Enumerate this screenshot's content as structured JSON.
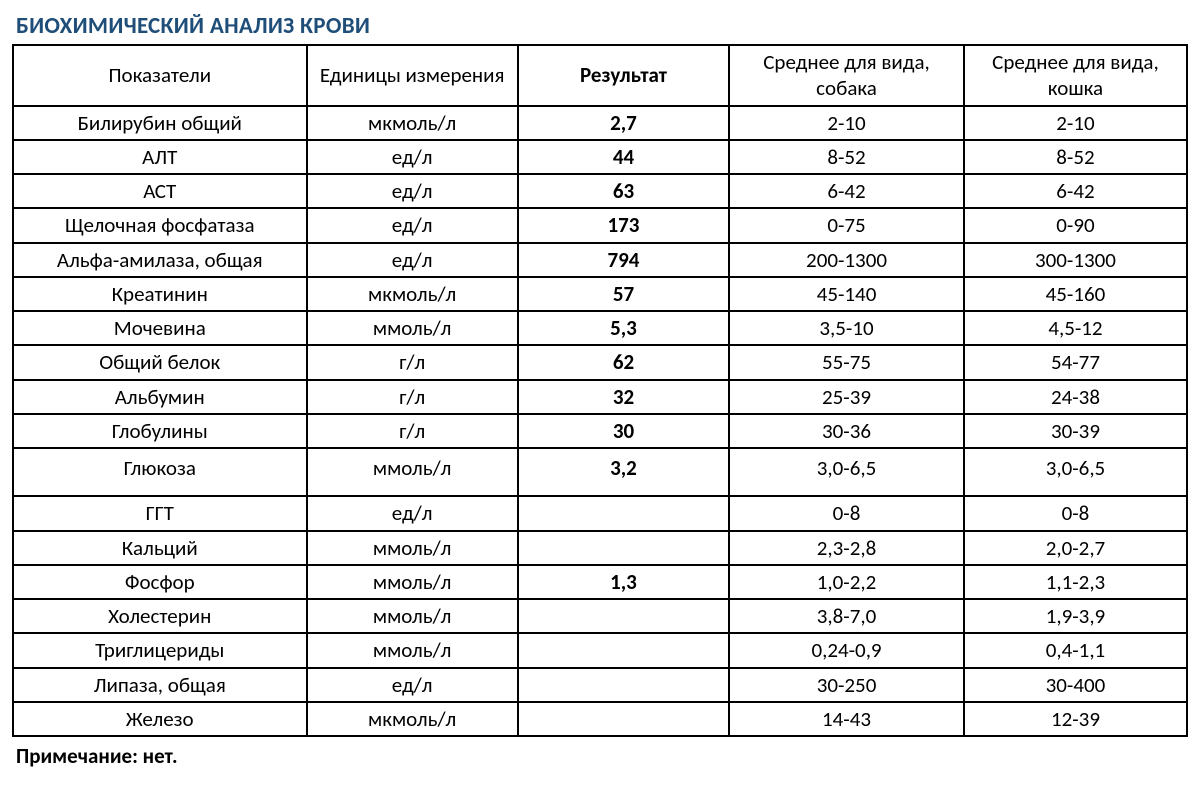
{
  "title": "БИОХИМИЧЕСКИЙ АНАЛИЗ КРОВИ",
  "columns": {
    "c1": "Показатели",
    "c2": "Единицы измерения",
    "c3": "Результат",
    "c4": "Среднее для вида, собака",
    "c5": "Среднее для вида, кошка"
  },
  "rows": [
    {
      "name": "Билирубин общий",
      "unit": "мкмоль/л",
      "result": "2,7",
      "dog": "2-10",
      "cat": "2-10"
    },
    {
      "name": "АЛТ",
      "unit": "ед/л",
      "result": "44",
      "dog": "8-52",
      "cat": "8-52"
    },
    {
      "name": "АСТ",
      "unit": "ед/л",
      "result": "63",
      "dog": "6-42",
      "cat": "6-42"
    },
    {
      "name": "Щелочная фосфатаза",
      "unit": "ед/л",
      "result": "173",
      "dog": "0-75",
      "cat": "0-90"
    },
    {
      "name": "Альфа-амилаза, общая",
      "unit": "ед/л",
      "result": "794",
      "dog": "200-1300",
      "cat": "300-1300"
    },
    {
      "name": "Креатинин",
      "unit": "мкмоль/л",
      "result": "57",
      "dog": "45-140",
      "cat": "45-160"
    },
    {
      "name": "Мочевина",
      "unit": "ммоль/л",
      "result": "5,3",
      "dog": "3,5-10",
      "cat": "4,5-12"
    },
    {
      "name": "Общий белок",
      "unit": "г/л",
      "result": "62",
      "dog": "55-75",
      "cat": "54-77"
    },
    {
      "name": "Альбумин",
      "unit": "г/л",
      "result": "32",
      "dog": "25-39",
      "cat": "24-38"
    },
    {
      "name": "Глобулины",
      "unit": "г/л",
      "result": "30",
      "dog": "30-36",
      "cat": "30-39"
    },
    {
      "name": "Глюкоза",
      "unit": "ммоль/л",
      "result": "3,2",
      "dog": "3,0-6,5",
      "cat": "3,0-6,5",
      "tall": true
    },
    {
      "name": "ГГТ",
      "unit": "ед/л",
      "result": "",
      "dog": "0-8",
      "cat": "0-8"
    },
    {
      "name": "Кальций",
      "unit": "ммоль/л",
      "result": "",
      "dog": "2,3-2,8",
      "cat": "2,0-2,7"
    },
    {
      "name": "Фосфор",
      "unit": "ммоль/л",
      "result": "1,3",
      "dog": "1,0-2,2",
      "cat": "1,1-2,3"
    },
    {
      "name": "Холестерин",
      "unit": "ммоль/л",
      "result": "",
      "dog": "3,8-7,0",
      "cat": "1,9-3,9"
    },
    {
      "name": "Триглицериды",
      "unit": "ммоль/л",
      "result": "",
      "dog": "0,24-0,9",
      "cat": "0,4-1,1"
    },
    {
      "name": "Липаза, общая",
      "unit": "ед/л",
      "result": "",
      "dog": "30-250",
      "cat": "30-400"
    },
    {
      "name": "Железо",
      "unit": "мкмоль/л",
      "result": "",
      "dog": "14-43",
      "cat": "12-39"
    }
  ],
  "note": "Примечание: нет.",
  "style": {
    "title_color": "#1f4e79",
    "border_color": "#000000",
    "font_family": "Calibri",
    "header_fontsize": 21,
    "body_fontsize": 21
  }
}
